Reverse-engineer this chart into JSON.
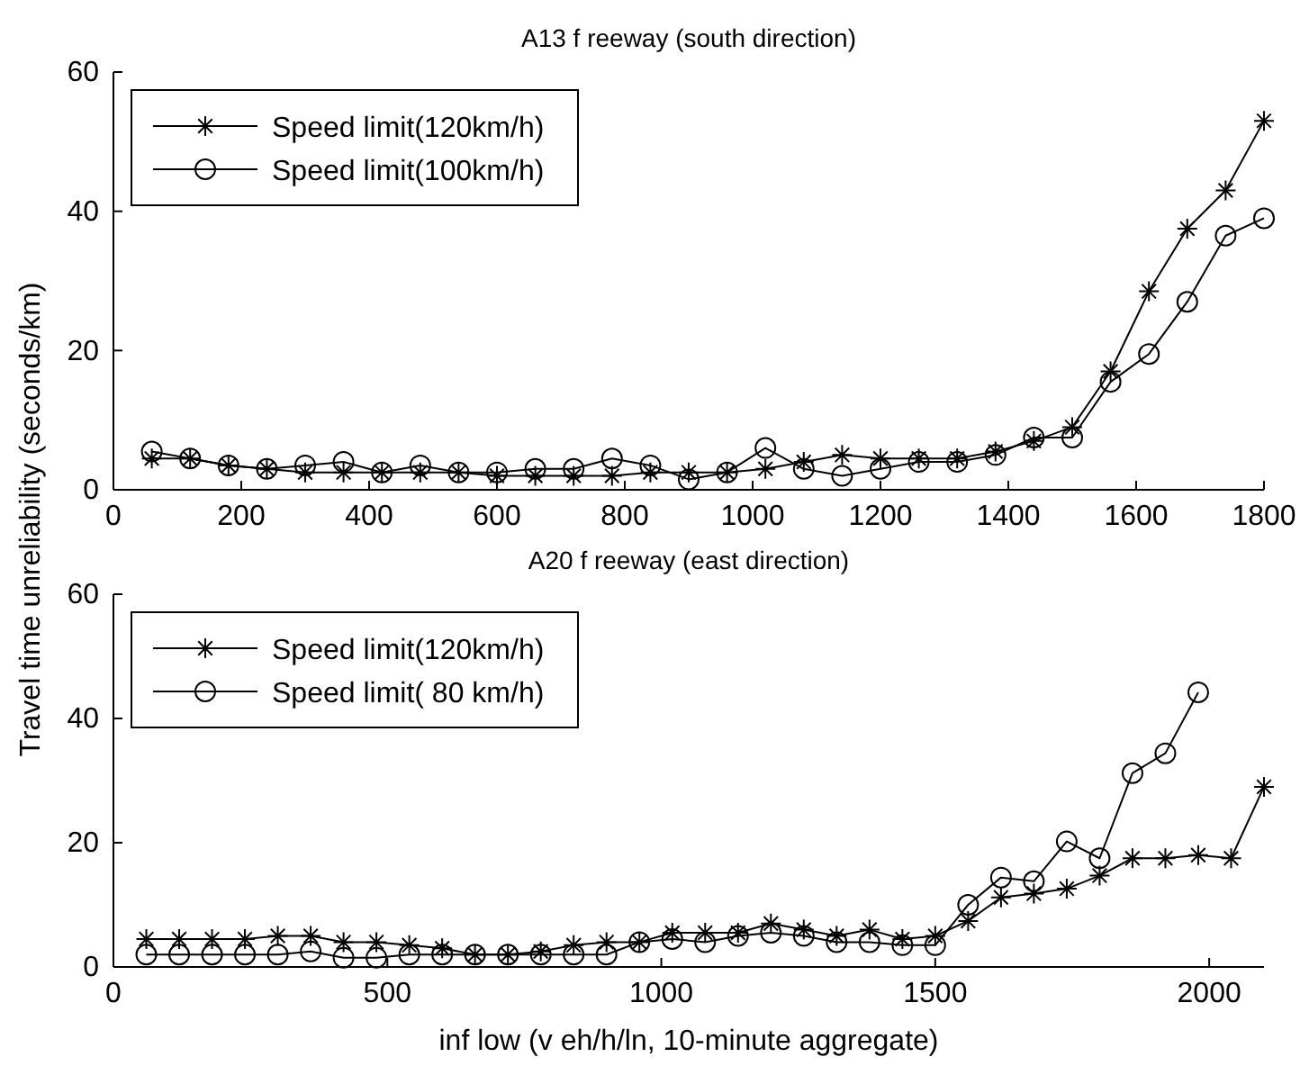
{
  "chart_data": [
    {
      "type": "line",
      "title": "A13 f reeway  (south direction)",
      "ylabel": "Travel time unreliability (seconds/km)",
      "x": [
        60,
        120,
        180,
        240,
        300,
        360,
        420,
        480,
        540,
        600,
        660,
        720,
        780,
        840,
        900,
        960,
        1020,
        1080,
        1140,
        1200,
        1260,
        1320,
        1380,
        1440,
        1500,
        1560,
        1620,
        1680,
        1740,
        1800
      ],
      "series": [
        {
          "name": "Speed limit(120km/h)",
          "color": "#000000",
          "marker": "cross",
          "values": [
            4.5,
            4.5,
            3.5,
            3,
            2.5,
            2.5,
            2.5,
            2.5,
            2.5,
            2,
            2,
            2,
            2,
            2.5,
            2.5,
            2.5,
            3,
            4,
            5,
            4.5,
            4.5,
            4.5,
            5.5,
            7,
            9,
            17,
            28.5,
            37.5,
            43,
            53
          ]
        },
        {
          "name": "Speed limit(100km/h)",
          "color": "#000000",
          "marker": "circle",
          "values": [
            5.5,
            4.5,
            3.5,
            3,
            3.5,
            4,
            2.5,
            3.5,
            2.5,
            2.5,
            3,
            3,
            4.5,
            3.5,
            1.5,
            2.5,
            6,
            3,
            2,
            3,
            4,
            4,
            5,
            7.5,
            7.5,
            15.5,
            19.5,
            27,
            36.5,
            39
          ]
        }
      ],
      "xlim": [
        0,
        1800
      ],
      "xticks": [
        0,
        200,
        400,
        600,
        800,
        1000,
        1200,
        1400,
        1600,
        1800
      ],
      "ylim": [
        0,
        60
      ],
      "yticks": [
        0,
        20,
        40,
        60
      ],
      "legend": "top left",
      "grid": false,
      "line_style": "solid"
    },
    {
      "type": "line",
      "title": "A20 f reeway  (east direction)",
      "xlabel": "inf low (v eh/h/ln, 10-minute aggregate)",
      "series": [
        {
          "name": "Speed limit(120km/h)",
          "color": "#000000",
          "marker": "cross",
          "x": [
            60,
            120,
            180,
            240,
            300,
            360,
            420,
            480,
            540,
            600,
            660,
            720,
            780,
            840,
            900,
            960,
            1020,
            1080,
            1140,
            1200,
            1260,
            1320,
            1380,
            1440,
            1500,
            1560,
            1620,
            1680,
            1740,
            1800,
            1860,
            1920,
            1980,
            2040,
            2100
          ],
          "values": [
            4.5,
            4.5,
            4.5,
            4.5,
            5,
            5,
            4,
            4,
            3.5,
            3,
            2,
            2,
            2.5,
            3.5,
            4,
            4,
            5.5,
            5.5,
            5.5,
            7,
            6,
            5,
            6,
            4.5,
            5,
            7.4,
            11.2,
            11.8,
            12.6,
            14.7,
            17.5,
            17.5,
            18,
            17.5,
            29
          ]
        },
        {
          "name": "Speed limit( 80 km/h)",
          "color": "#000000",
          "marker": "circle",
          "x": [
            60,
            120,
            180,
            240,
            300,
            360,
            420,
            480,
            540,
            600,
            660,
            720,
            780,
            840,
            900,
            960,
            1020,
            1080,
            1140,
            1200,
            1260,
            1320,
            1380,
            1440,
            1500,
            1560,
            1620,
            1680,
            1740,
            1800,
            1860,
            1920,
            1980
          ],
          "values": [
            2,
            2,
            2,
            2,
            2,
            2.5,
            1.5,
            1.5,
            2,
            2,
            2,
            2,
            2,
            2,
            2,
            4,
            4.5,
            4,
            5,
            5.5,
            5,
            4,
            4,
            3.5,
            3.5,
            10,
            14.4,
            13.8,
            20.2,
            17.5,
            31.2,
            34.4,
            44.2
          ]
        }
      ],
      "xlim": [
        0,
        2100
      ],
      "xticks": [
        0,
        500,
        1000,
        1500,
        2000
      ],
      "ylim": [
        0,
        60
      ],
      "yticks": [
        0,
        20,
        40,
        60
      ],
      "legend": "top left",
      "grid": false,
      "line_style": "solid"
    }
  ]
}
